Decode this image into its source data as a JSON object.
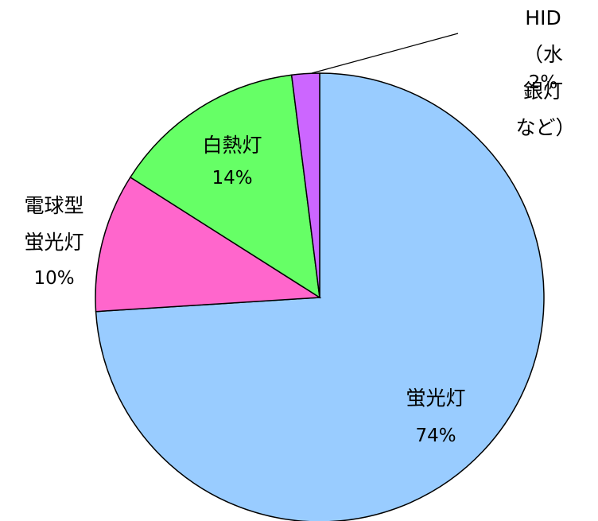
{
  "chart_data": {
    "type": "pie",
    "categories": [
      "蛍光灯",
      "電球型\n蛍光灯",
      "白熱灯",
      "HID\n（水銀灯など）"
    ],
    "values": [
      74,
      10,
      14,
      2
    ],
    "value_labels": [
      "74%",
      "10%",
      "14%",
      "2%"
    ],
    "colors": [
      "#99ccff",
      "#ff66cc",
      "#66ff66",
      "#cc66ff"
    ]
  }
}
